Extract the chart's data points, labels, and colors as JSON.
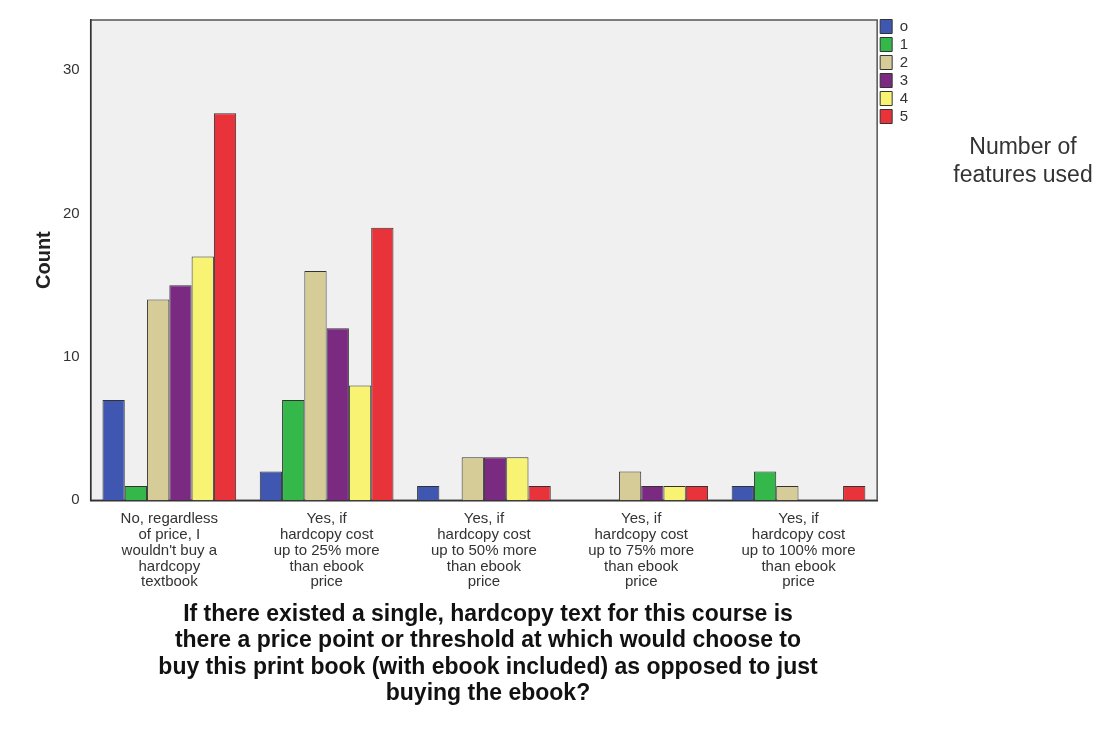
{
  "chart_data": {
    "type": "bar",
    "xlabel": "If there existed a single, hardcopy text for this course  is there a price point or threshold at which would choose to buy this print book (with ebook included) as opposed to just buying the ebook?",
    "ylabel": "Count",
    "legend_title": "Number of features used",
    "categories": [
      "No, regardless of price, I wouldn't buy a hardcopy textbook",
      "Yes, if hardcopy cost up to 25% more than ebook price",
      "Yes, if hardcopy cost up to 50% more than ebook price",
      "Yes, if hardcopy cost up to 75% more than ebook price",
      "Yes, if hardcopy cost up to 100% more than ebook price"
    ],
    "series": [
      {
        "name": "o",
        "color": "#3f57b0",
        "values": [
          7,
          2,
          1,
          0,
          1
        ]
      },
      {
        "name": "1",
        "color": "#35b84a",
        "values": [
          1,
          7,
          0,
          0,
          2
        ]
      },
      {
        "name": "2",
        "color": "#d6cc98",
        "values": [
          14,
          16,
          3,
          2,
          1
        ]
      },
      {
        "name": "3",
        "color": "#7b2a82",
        "values": [
          15,
          12,
          3,
          1,
          0
        ]
      },
      {
        "name": "4",
        "color": "#f8f373",
        "values": [
          17,
          8,
          3,
          1,
          0
        ]
      },
      {
        "name": "5",
        "color": "#e8333a",
        "values": [
          27,
          19,
          1,
          1,
          1
        ]
      }
    ],
    "ylim": [
      0,
      33.5
    ],
    "yticks": [
      0,
      10,
      20,
      30
    ],
    "grid": false,
    "legend": "right"
  }
}
